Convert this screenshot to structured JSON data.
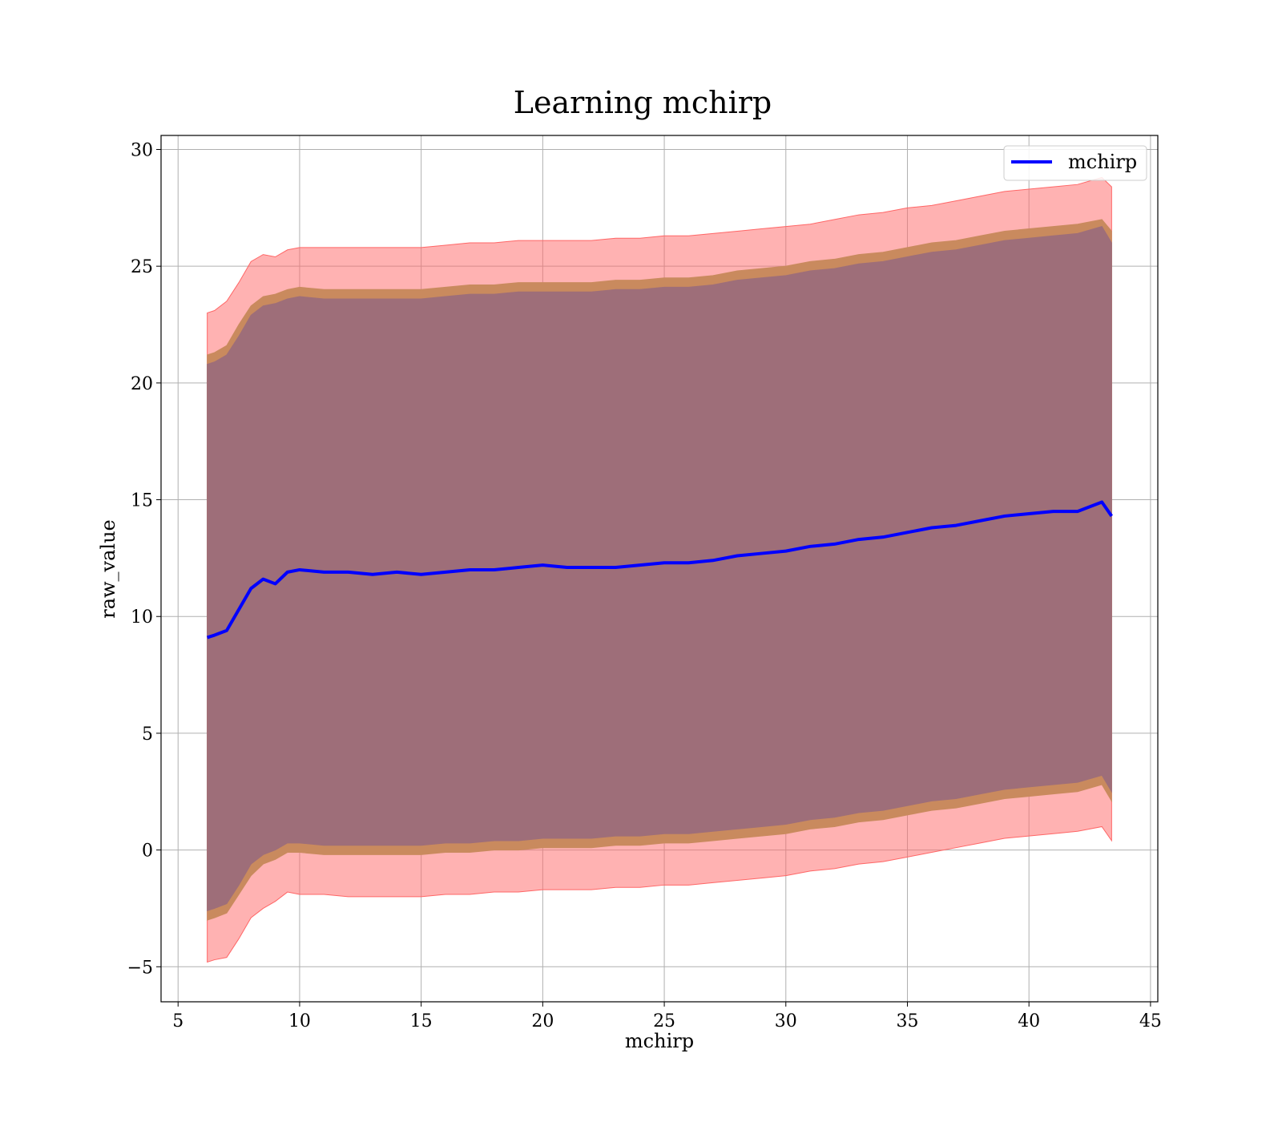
{
  "chart_data": {
    "type": "line",
    "title": "Learning mchirp",
    "xlabel": "mchirp",
    "ylabel": "raw_value",
    "xlim": [
      4.3,
      45.3
    ],
    "ylim": [
      -6.5,
      30.6
    ],
    "xticks": [
      5,
      10,
      15,
      20,
      25,
      30,
      35,
      40,
      45
    ],
    "yticks": [
      -5,
      0,
      5,
      10,
      15,
      20,
      25,
      30
    ],
    "xtick_labels": [
      "5",
      "10",
      "15",
      "20",
      "25",
      "30",
      "35",
      "40",
      "45"
    ],
    "ytick_labels": [
      "−5",
      "0",
      "5",
      "10",
      "15",
      "20",
      "25",
      "30"
    ],
    "grid": true,
    "legend": {
      "placement": "top-right",
      "entries": [
        "mchirp"
      ]
    },
    "colors": {
      "mean_line": "#0000ff",
      "outer_band": "#ff6666",
      "middle_band": "#c98a5e",
      "inner_band": "#9e6e79",
      "grid": "#b0b0b0"
    },
    "x": [
      6.2,
      6.5,
      7.0,
      7.5,
      8.0,
      8.5,
      9.0,
      9.5,
      10.0,
      11.0,
      12.0,
      13.0,
      14.0,
      15.0,
      16.0,
      17.0,
      18.0,
      19.0,
      20.0,
      21.0,
      22.0,
      23.0,
      24.0,
      25.0,
      26.0,
      27.0,
      28.0,
      29.0,
      30.0,
      31.0,
      32.0,
      33.0,
      34.0,
      35.0,
      36.0,
      37.0,
      38.0,
      39.0,
      40.0,
      41.0,
      42.0,
      43.0,
      43.4
    ],
    "series": [
      {
        "name": "mchirp",
        "role": "mean",
        "values": [
          9.1,
          9.2,
          9.4,
          10.3,
          11.2,
          11.6,
          11.4,
          11.9,
          12.0,
          11.9,
          11.9,
          11.8,
          11.9,
          11.8,
          11.9,
          12.0,
          12.0,
          12.1,
          12.2,
          12.1,
          12.1,
          12.1,
          12.2,
          12.3,
          12.3,
          12.4,
          12.6,
          12.7,
          12.8,
          13.0,
          13.1,
          13.3,
          13.4,
          13.6,
          13.8,
          13.9,
          14.1,
          14.3,
          14.4,
          14.5,
          14.5,
          14.9,
          14.3
        ]
      },
      {
        "role": "outer_band",
        "upper": [
          23.0,
          23.1,
          23.5,
          24.3,
          25.2,
          25.5,
          25.4,
          25.7,
          25.8,
          25.8,
          25.8,
          25.8,
          25.8,
          25.8,
          25.9,
          26.0,
          26.0,
          26.1,
          26.1,
          26.1,
          26.1,
          26.2,
          26.2,
          26.3,
          26.3,
          26.4,
          26.5,
          26.6,
          26.7,
          26.8,
          27.0,
          27.2,
          27.3,
          27.5,
          27.6,
          27.8,
          28.0,
          28.2,
          28.3,
          28.4,
          28.5,
          28.8,
          28.4
        ],
        "lower": [
          -4.8,
          -4.7,
          -4.6,
          -3.8,
          -2.9,
          -2.5,
          -2.2,
          -1.8,
          -1.9,
          -1.9,
          -2.0,
          -2.0,
          -2.0,
          -2.0,
          -1.9,
          -1.9,
          -1.8,
          -1.8,
          -1.7,
          -1.7,
          -1.7,
          -1.6,
          -1.6,
          -1.5,
          -1.5,
          -1.4,
          -1.3,
          -1.2,
          -1.1,
          -0.9,
          -0.8,
          -0.6,
          -0.5,
          -0.3,
          -0.1,
          0.1,
          0.3,
          0.5,
          0.6,
          0.7,
          0.8,
          1.0,
          0.4
        ]
      },
      {
        "role": "middle_band",
        "upper": [
          21.2,
          21.3,
          21.6,
          22.5,
          23.3,
          23.7,
          23.8,
          24.0,
          24.1,
          24.0,
          24.0,
          24.0,
          24.0,
          24.0,
          24.1,
          24.2,
          24.2,
          24.3,
          24.3,
          24.3,
          24.3,
          24.4,
          24.4,
          24.5,
          24.5,
          24.6,
          24.8,
          24.9,
          25.0,
          25.2,
          25.3,
          25.5,
          25.6,
          25.8,
          26.0,
          26.1,
          26.3,
          26.5,
          26.6,
          26.7,
          26.8,
          27.0,
          26.5
        ],
        "lower": [
          -3.0,
          -2.9,
          -2.7,
          -1.9,
          -1.1,
          -0.6,
          -0.4,
          -0.1,
          -0.1,
          -0.2,
          -0.2,
          -0.2,
          -0.2,
          -0.2,
          -0.1,
          -0.1,
          0.0,
          0.0,
          0.1,
          0.1,
          0.1,
          0.2,
          0.2,
          0.3,
          0.3,
          0.4,
          0.5,
          0.6,
          0.7,
          0.9,
          1.0,
          1.2,
          1.3,
          1.5,
          1.7,
          1.8,
          2.0,
          2.2,
          2.3,
          2.4,
          2.5,
          2.8,
          2.1
        ]
      },
      {
        "role": "inner_band",
        "upper": [
          20.8,
          20.9,
          21.2,
          22.0,
          22.9,
          23.3,
          23.4,
          23.6,
          23.7,
          23.6,
          23.6,
          23.6,
          23.6,
          23.6,
          23.7,
          23.8,
          23.8,
          23.9,
          23.9,
          23.9,
          23.9,
          24.0,
          24.0,
          24.1,
          24.1,
          24.2,
          24.4,
          24.5,
          24.6,
          24.8,
          24.9,
          25.1,
          25.2,
          25.4,
          25.6,
          25.7,
          25.9,
          26.1,
          26.2,
          26.3,
          26.4,
          26.7,
          26.0
        ],
        "lower": [
          -2.6,
          -2.5,
          -2.3,
          -1.5,
          -0.6,
          -0.2,
          0.0,
          0.3,
          0.3,
          0.2,
          0.2,
          0.2,
          0.2,
          0.2,
          0.3,
          0.3,
          0.4,
          0.4,
          0.5,
          0.5,
          0.5,
          0.6,
          0.6,
          0.7,
          0.7,
          0.8,
          0.9,
          1.0,
          1.1,
          1.3,
          1.4,
          1.6,
          1.7,
          1.9,
          2.1,
          2.2,
          2.4,
          2.6,
          2.7,
          2.8,
          2.9,
          3.2,
          2.5
        ]
      }
    ]
  }
}
